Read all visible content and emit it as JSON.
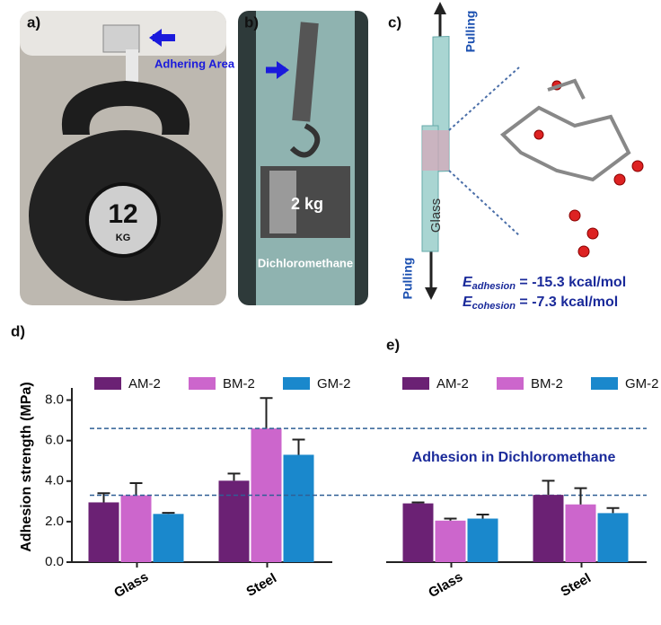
{
  "panels": {
    "a": {
      "label": "a)",
      "annotation": "Adhering Area",
      "bell_number": "12",
      "bell_unit": "KG"
    },
    "b": {
      "label": "b)",
      "weight": "2 kg",
      "solvent": "Dichloromethane"
    },
    "c": {
      "label": "c)",
      "pull_top": "Pulling",
      "pull_bottom": "Pulling",
      "slide": "Glass",
      "energies": [
        {
          "symbol": "E",
          "subscript": "adhesion",
          "text": " = -15.3 kcal/mol"
        },
        {
          "symbol": "E",
          "subscript": "cohesion",
          "text": " = -7.3 kcal/mol"
        }
      ]
    }
  },
  "chart_data": [
    {
      "type": "bar",
      "panel_label": "d)",
      "ylabel": "Adhesion strength (MPa)",
      "categories": [
        "Glass",
        "Steel"
      ],
      "series": [
        {
          "name": "AM-2",
          "color": "#6b2174",
          "values": [
            2.95,
            4.02
          ],
          "errors": [
            0.45,
            0.35
          ]
        },
        {
          "name": "BM-2",
          "color": "#cc66cc",
          "values": [
            3.3,
            6.6
          ],
          "errors": [
            0.6,
            1.5
          ]
        },
        {
          "name": "GM-2",
          "color": "#1a88cc",
          "values": [
            2.38,
            5.3
          ],
          "errors": [
            0.05,
            0.75
          ]
        }
      ],
      "ylim": [
        0,
        8.6
      ],
      "yticks": [
        {
          "value": 0,
          "label": "0.0"
        },
        {
          "value": 2,
          "label": "2.0"
        },
        {
          "value": 4,
          "label": "4.0"
        },
        {
          "value": 6,
          "label": "6.0"
        },
        {
          "value": 8,
          "label": "8.0"
        }
      ],
      "hlines": [
        6.6,
        3.3
      ]
    },
    {
      "type": "bar",
      "panel_label": "e)",
      "annotation": "Adhesion in Dichloromethane",
      "categories": [
        "Glass",
        "Steel"
      ],
      "series": [
        {
          "name": "AM-2",
          "color": "#6b2174",
          "values": [
            2.9,
            3.32
          ],
          "errors": [
            0.05,
            0.7
          ]
        },
        {
          "name": "BM-2",
          "color": "#cc66cc",
          "values": [
            2.05,
            2.85
          ],
          "errors": [
            0.1,
            0.8
          ]
        },
        {
          "name": "GM-2",
          "color": "#1a88cc",
          "values": [
            2.15,
            2.42
          ],
          "errors": [
            0.2,
            0.25
          ]
        }
      ],
      "ylim": [
        0,
        8.6
      ]
    }
  ]
}
